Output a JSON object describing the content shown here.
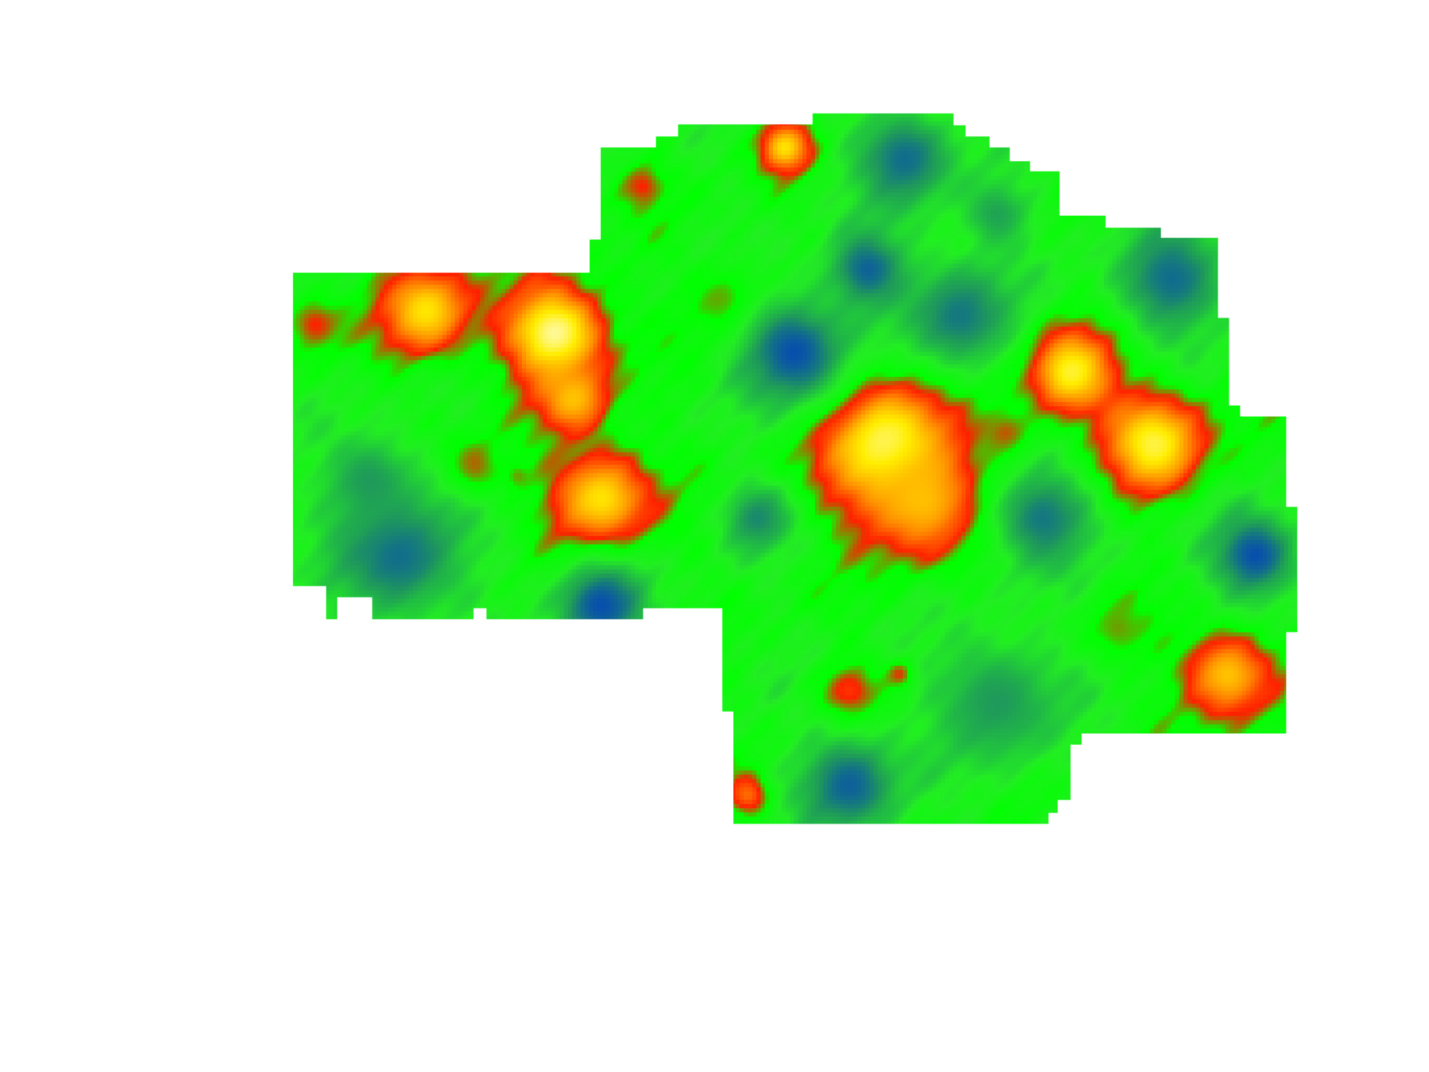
{
  "map": {
    "kind": "false-color heat map",
    "background_color": "#ffffff",
    "color_ramp": [
      "#0033cc",
      "#1f9a5a",
      "#22ee22",
      "#00ff00",
      "#ff2000",
      "#ff8800",
      "#ffee00",
      "#fffff0"
    ],
    "legend_visible": false,
    "title_visible": false
  }
}
